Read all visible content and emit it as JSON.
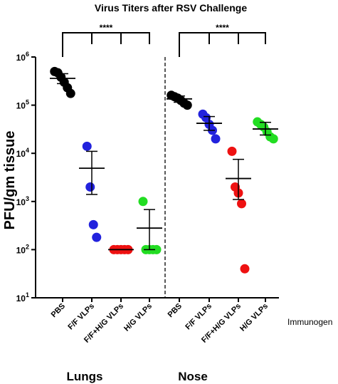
{
  "chart_data": {
    "type": "scatter",
    "title": "Virus Titers after RSV Challenge",
    "ylabel": "PFU/gm tissue",
    "yscale": "log",
    "ylim": [
      10,
      1000000
    ],
    "yticks": [
      {
        "value": 10,
        "base": "10",
        "exp": "1"
      },
      {
        "value": 100,
        "base": "10",
        "exp": "2"
      },
      {
        "value": 1000,
        "base": "10",
        "exp": "3"
      },
      {
        "value": 10000,
        "base": "10",
        "exp": "4"
      },
      {
        "value": 100000,
        "base": "10",
        "exp": "5"
      },
      {
        "value": 1000000,
        "base": "10",
        "exp": "6"
      }
    ],
    "x_axis_title": "Immunogen",
    "groups": [
      {
        "label": "Lungs",
        "categories": [
          {
            "label": "PBS",
            "color": "#000000",
            "values": [
              500000,
              470000,
              380000,
              300000,
              230000,
              175000
            ],
            "mean": 360000,
            "sem_low": 280000,
            "sem_high": 450000
          },
          {
            "label": "F/F VLPs",
            "color": "#2222dd",
            "values": [
              14000,
              2000,
              330,
              180
            ],
            "mean": 4900,
            "sem_low": 1400,
            "sem_high": 11000
          },
          {
            "label": "F/F+H/G VLPs",
            "color": "#ee1111",
            "values": [
              100,
              100,
              100,
              100,
              100
            ],
            "mean": 100,
            "sem_low": 100,
            "sem_high": 100
          },
          {
            "label": "H/G VLPs",
            "color": "#22dd22",
            "values": [
              1000,
              100,
              100,
              100,
              100
            ],
            "mean": 280,
            "sem_low": 100,
            "sem_high": 680
          }
        ]
      },
      {
        "label": "Nose",
        "categories": [
          {
            "label": "PBS",
            "color": "#000000",
            "values": [
              160000,
              150000,
              140000,
              125000,
              110000,
              100000
            ],
            "mean": 135000,
            "sem_low": 115000,
            "sem_high": 155000
          },
          {
            "label": "F/F VLPs",
            "color": "#2222dd",
            "values": [
              65000,
              55000,
              40000,
              30000,
              20000
            ],
            "mean": 42000,
            "sem_low": 30000,
            "sem_high": 58000
          },
          {
            "label": "F/F+H/G VLPs",
            "color": "#ee1111",
            "values": [
              11000,
              2000,
              1500,
              900,
              40
            ],
            "mean": 3000,
            "sem_low": 1100,
            "sem_high": 7500
          },
          {
            "label": "H/G VLPs",
            "color": "#22dd22",
            "values": [
              45000,
              40000,
              35000,
              28000,
              22000,
              20000
            ],
            "mean": 32000,
            "sem_low": 24000,
            "sem_high": 44000
          }
        ]
      }
    ],
    "significance": [
      {
        "group": "Lungs",
        "from": "PBS",
        "to": "H/G VLPs",
        "label": "****"
      },
      {
        "group": "Nose",
        "from": "PBS",
        "to": "H/G VLPs",
        "label": "****"
      }
    ]
  }
}
